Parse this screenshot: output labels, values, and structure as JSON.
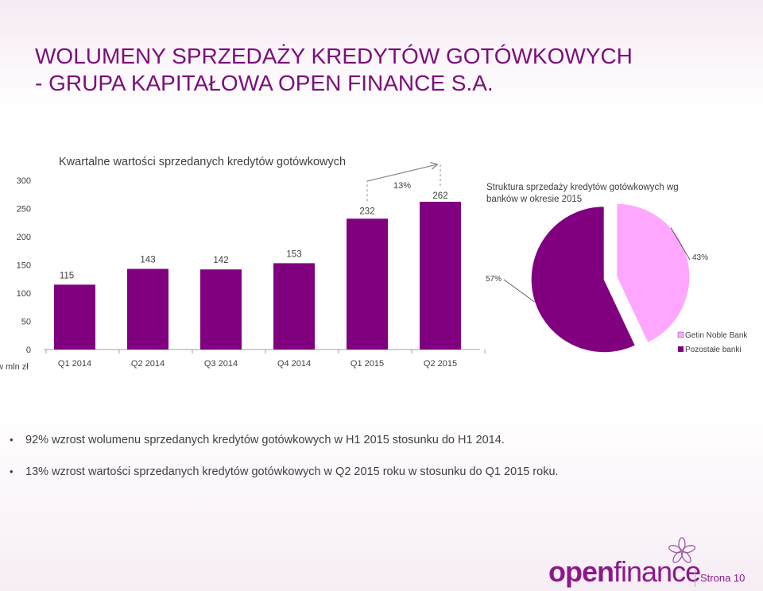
{
  "title": {
    "line1": "WOLUMENY SPRZEDAŻY KREDYTÓW GOTÓWKOWYCH",
    "line2": "- GRUPA KAPITAŁOWA OPEN FINANCE S.A."
  },
  "colors": {
    "title": "#7a0f7a",
    "bar": "#800080",
    "pie_getin": "#ffa6ff",
    "pie_other": "#800080",
    "text": "#404040"
  },
  "chart_data": [
    {
      "type": "bar",
      "title": "Kwartalne wartości sprzedanych kredytów gotówkowych",
      "ylabel": "w mln zł",
      "categories": [
        "Q1 2014",
        "Q2 2014",
        "Q3 2014",
        "Q4 2014",
        "Q1 2015",
        "Q2 2015"
      ],
      "values": [
        115,
        143,
        142,
        153,
        232,
        262
      ],
      "yticks": [
        0,
        50,
        100,
        150,
        200,
        250,
        300
      ],
      "ylim": [
        0,
        300
      ],
      "grid": false,
      "annotation": {
        "text": "13%",
        "from": "Q1 2015",
        "to": "Q2 2015"
      }
    },
    {
      "type": "pie",
      "title": "Struktura sprzedaży kredytów gotówkowych wg banków w okresie 2015",
      "labels": [
        "Getin Noble Bank",
        "Pozostałe banki"
      ],
      "values": [
        43,
        57
      ],
      "data_labels": [
        "43%",
        "57%"
      ],
      "legend": "bottom-right",
      "exploded": true
    }
  ],
  "bullets": [
    "92% wzrost wolumenu sprzedanych kredytów gotówkowych w H1 2015 stosunku do H1 2014.",
    "13% wzrost wartości sprzedanych kredytów gotówkowych w Q2 2015 roku w stosunku do Q1 2015 roku."
  ],
  "bullet_glyph": "•",
  "logo": {
    "part1": "open",
    "part2": "finance"
  },
  "page": "Strona 10"
}
